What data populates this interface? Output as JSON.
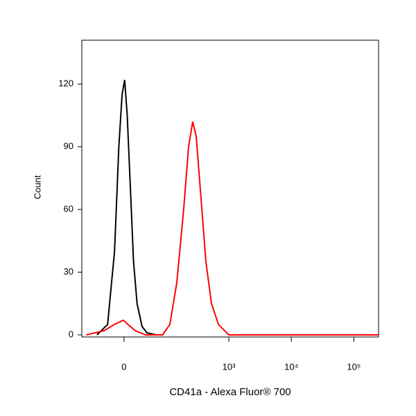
{
  "chart_data": {
    "type": "line",
    "xlabel": "CD41a - Alexa Fluor® 700",
    "ylabel": "Count",
    "xscale": "arcsinh",
    "xlim": [
      -95,
      249000
    ],
    "xticks": [
      0,
      {
        "value": 1000,
        "label": "10³"
      },
      {
        "value": 10000,
        "label": "10⁴"
      },
      {
        "value": 100000,
        "label": "10⁵"
      }
    ],
    "ylim": [
      -1,
      141
    ],
    "yticks": [
      0,
      30,
      60,
      90,
      120
    ],
    "series": [
      {
        "color": "#000000",
        "x": [
          -49,
          -27,
          -15,
          -8,
          -3,
          1,
          5,
          10,
          15,
          21,
          30,
          40,
          62
        ],
        "values": [
          0,
          5,
          40,
          90,
          115,
          122,
          105,
          70,
          35,
          15,
          4,
          1,
          0
        ]
      },
      {
        "color": "#ff0000",
        "x": [
          -79,
          -34,
          -15,
          -1,
          6,
          18,
          37,
          82,
          110,
          144,
          187,
          225,
          262,
          299,
          358,
          429,
          526,
          681,
          996,
          249000
        ],
        "values": [
          0,
          2,
          5,
          7,
          5,
          2,
          0,
          0,
          5,
          25,
          60,
          90,
          102,
          95,
          65,
          35,
          15,
          5,
          0,
          0
        ]
      }
    ]
  }
}
